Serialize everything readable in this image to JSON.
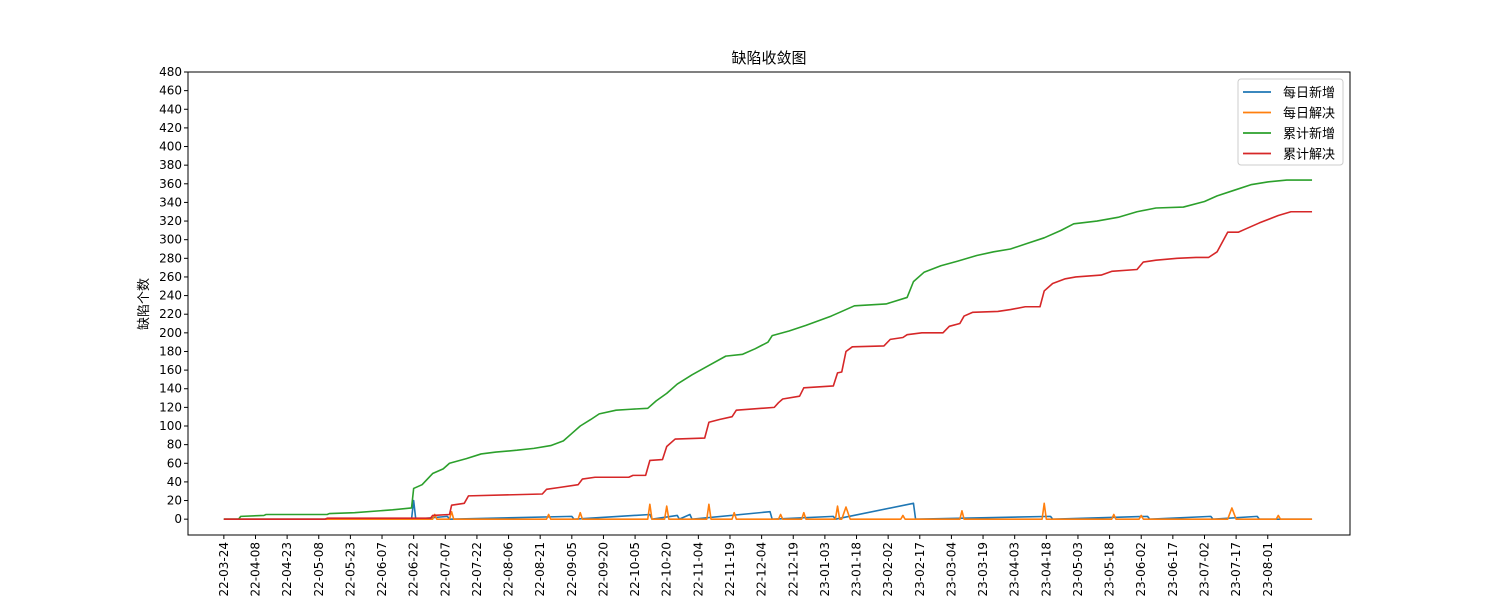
{
  "chart_data": {
    "type": "line",
    "title": "缺陷收敛图",
    "xlabel": "",
    "ylabel": "缺陷个数",
    "ylim": [
      -17,
      480
    ],
    "yticks": [
      0,
      20,
      40,
      60,
      80,
      100,
      120,
      140,
      160,
      180,
      200,
      220,
      240,
      260,
      280,
      300,
      320,
      340,
      360,
      380,
      400,
      420,
      440,
      460,
      480
    ],
    "x_start": "2022-03-24",
    "x_end": "2023-08-22",
    "xlim": [
      "2022-03-07",
      "2023-09-09"
    ],
    "xticks": [
      "22-03-24",
      "22-04-08",
      "22-04-23",
      "22-05-08",
      "22-05-23",
      "22-06-07",
      "22-06-22",
      "22-07-07",
      "22-07-22",
      "22-08-06",
      "22-08-21",
      "22-09-05",
      "22-09-20",
      "22-10-05",
      "22-10-20",
      "22-11-04",
      "22-11-19",
      "22-12-04",
      "22-12-19",
      "23-01-03",
      "23-01-18",
      "23-02-02",
      "23-02-17",
      "23-03-04",
      "23-03-19",
      "23-04-03",
      "23-04-18",
      "23-05-03",
      "23-05-18",
      "23-06-02",
      "23-06-17",
      "23-07-02",
      "23-07-17",
      "23-08-01"
    ],
    "legend_position": "top-right",
    "grid": false,
    "series": [
      {
        "name": "每日新增",
        "color": "#1f77b4",
        "points": [
          [
            "2022-03-24",
            0
          ],
          [
            "2022-06-21",
            0
          ],
          [
            "2022-06-22",
            20
          ],
          [
            "2022-06-23",
            0
          ],
          [
            "2022-07-08",
            3
          ],
          [
            "2022-07-09",
            0
          ],
          [
            "2022-09-05",
            3
          ],
          [
            "2022-09-06",
            0
          ],
          [
            "2022-10-12",
            5
          ],
          [
            "2022-10-13",
            0
          ],
          [
            "2022-10-25",
            4
          ],
          [
            "2022-10-26",
            0
          ],
          [
            "2022-10-31",
            5
          ],
          [
            "2022-11-01",
            0
          ],
          [
            "2022-12-08",
            8
          ],
          [
            "2022-12-09",
            0
          ],
          [
            "2023-01-07",
            3
          ],
          [
            "2023-01-08",
            0
          ],
          [
            "2023-02-14",
            17
          ],
          [
            "2023-02-15",
            0
          ],
          [
            "2023-04-20",
            3
          ],
          [
            "2023-04-21",
            0
          ],
          [
            "2023-06-05",
            3
          ],
          [
            "2023-06-06",
            0
          ],
          [
            "2023-07-05",
            3
          ],
          [
            "2023-07-06",
            0
          ],
          [
            "2023-07-27",
            3
          ],
          [
            "2023-07-28",
            0
          ],
          [
            "2023-08-22",
            0
          ]
        ]
      },
      {
        "name": "每日解决",
        "color": "#ff7f0e",
        "points": [
          [
            "2022-03-24",
            0
          ],
          [
            "2022-07-01",
            0
          ],
          [
            "2022-07-02",
            5
          ],
          [
            "2022-07-03",
            0
          ],
          [
            "2022-07-09",
            0
          ],
          [
            "2022-07-10",
            8
          ],
          [
            "2022-07-11",
            0
          ],
          [
            "2022-08-24",
            0
          ],
          [
            "2022-08-25",
            5
          ],
          [
            "2022-08-26",
            0
          ],
          [
            "2022-09-08",
            0
          ],
          [
            "2022-09-09",
            7
          ],
          [
            "2022-09-10",
            0
          ],
          [
            "2022-10-11",
            0
          ],
          [
            "2022-10-12",
            16
          ],
          [
            "2022-10-13",
            0
          ],
          [
            "2022-10-19",
            0
          ],
          [
            "2022-10-20",
            14
          ],
          [
            "2022-10-21",
            0
          ],
          [
            "2022-11-08",
            0
          ],
          [
            "2022-11-09",
            16
          ],
          [
            "2022-11-10",
            0
          ],
          [
            "2022-11-20",
            0
          ],
          [
            "2022-11-21",
            7
          ],
          [
            "2022-11-22",
            0
          ],
          [
            "2022-12-12",
            0
          ],
          [
            "2022-12-13",
            5
          ],
          [
            "2022-12-14",
            0
          ],
          [
            "2022-12-23",
            0
          ],
          [
            "2022-12-24",
            7
          ],
          [
            "2022-12-25",
            0
          ],
          [
            "2023-01-08",
            0
          ],
          [
            "2023-01-09",
            14
          ],
          [
            "2023-01-10",
            0
          ],
          [
            "2023-01-11",
            0
          ],
          [
            "2023-01-13",
            13
          ],
          [
            "2023-01-15",
            0
          ],
          [
            "2023-02-08",
            0
          ],
          [
            "2023-02-09",
            4
          ],
          [
            "2023-02-10",
            0
          ],
          [
            "2023-03-08",
            0
          ],
          [
            "2023-03-09",
            9
          ],
          [
            "2023-03-10",
            0
          ],
          [
            "2023-04-16",
            0
          ],
          [
            "2023-04-17",
            17
          ],
          [
            "2023-04-18",
            0
          ],
          [
            "2023-05-19",
            0
          ],
          [
            "2023-05-20",
            5
          ],
          [
            "2023-05-21",
            0
          ],
          [
            "2023-06-01",
            0
          ],
          [
            "2023-06-02",
            4
          ],
          [
            "2023-06-03",
            0
          ],
          [
            "2023-07-13",
            0
          ],
          [
            "2023-07-15",
            12
          ],
          [
            "2023-07-17",
            0
          ],
          [
            "2023-08-05",
            0
          ],
          [
            "2023-08-06",
            4
          ],
          [
            "2023-08-07",
            0
          ],
          [
            "2023-08-22",
            0
          ]
        ]
      },
      {
        "name": "累计新增",
        "color": "#2ca02c",
        "points": [
          [
            "2022-03-24",
            0
          ],
          [
            "2022-03-31",
            0
          ],
          [
            "2022-04-01",
            3
          ],
          [
            "2022-04-12",
            4
          ],
          [
            "2022-04-13",
            5
          ],
          [
            "2022-05-12",
            5
          ],
          [
            "2022-05-13",
            6
          ],
          [
            "2022-05-25",
            7
          ],
          [
            "2022-06-12",
            10
          ],
          [
            "2022-06-21",
            12
          ],
          [
            "2022-06-22",
            33
          ],
          [
            "2022-06-26",
            37
          ],
          [
            "2022-07-01",
            49
          ],
          [
            "2022-07-06",
            54
          ],
          [
            "2022-07-09",
            60
          ],
          [
            "2022-07-17",
            65
          ],
          [
            "2022-07-24",
            70
          ],
          [
            "2022-07-31",
            72
          ],
          [
            "2022-08-10",
            74
          ],
          [
            "2022-08-18",
            76
          ],
          [
            "2022-08-26",
            79
          ],
          [
            "2022-09-01",
            84
          ],
          [
            "2022-09-05",
            92
          ],
          [
            "2022-09-09",
            100
          ],
          [
            "2022-09-14",
            107
          ],
          [
            "2022-09-18",
            113
          ],
          [
            "2022-09-26",
            117
          ],
          [
            "2022-10-03",
            118
          ],
          [
            "2022-10-11",
            119
          ],
          [
            "2022-10-15",
            127
          ],
          [
            "2022-10-20",
            135
          ],
          [
            "2022-10-25",
            145
          ],
          [
            "2022-11-01",
            155
          ],
          [
            "2022-11-09",
            165
          ],
          [
            "2022-11-17",
            175
          ],
          [
            "2022-11-25",
            177
          ],
          [
            "2022-12-01",
            183
          ],
          [
            "2022-12-07",
            190
          ],
          [
            "2022-12-09",
            197
          ],
          [
            "2022-12-17",
            202
          ],
          [
            "2022-12-25",
            208
          ],
          [
            "2022-12-31",
            213
          ],
          [
            "2023-01-06",
            218
          ],
          [
            "2023-01-11",
            223
          ],
          [
            "2023-01-17",
            229
          ],
          [
            "2023-02-01",
            231
          ],
          [
            "2023-02-11",
            238
          ],
          [
            "2023-02-14",
            255
          ],
          [
            "2023-02-19",
            265
          ],
          [
            "2023-02-27",
            272
          ],
          [
            "2023-03-07",
            277
          ],
          [
            "2023-03-16",
            283
          ],
          [
            "2023-03-24",
            287
          ],
          [
            "2023-04-01",
            290
          ],
          [
            "2023-04-09",
            296
          ],
          [
            "2023-04-17",
            302
          ],
          [
            "2023-04-25",
            310
          ],
          [
            "2023-05-01",
            317
          ],
          [
            "2023-05-12",
            320
          ],
          [
            "2023-05-22",
            324
          ],
          [
            "2023-05-31",
            330
          ],
          [
            "2023-06-09",
            334
          ],
          [
            "2023-06-22",
            335
          ],
          [
            "2023-07-02",
            341
          ],
          [
            "2023-07-08",
            347
          ],
          [
            "2023-07-16",
            353
          ],
          [
            "2023-07-24",
            359
          ],
          [
            "2023-08-01",
            362
          ],
          [
            "2023-08-10",
            364
          ],
          [
            "2023-08-22",
            364
          ]
        ]
      },
      {
        "name": "累计解决",
        "color": "#d62728",
        "points": [
          [
            "2022-03-24",
            0
          ],
          [
            "2022-05-11",
            0
          ],
          [
            "2022-05-12",
            1
          ],
          [
            "2022-06-30",
            1
          ],
          [
            "2022-07-01",
            4
          ],
          [
            "2022-07-09",
            5
          ],
          [
            "2022-07-10",
            15
          ],
          [
            "2022-07-16",
            17
          ],
          [
            "2022-07-18",
            25
          ],
          [
            "2022-08-22",
            27
          ],
          [
            "2022-08-24",
            32
          ],
          [
            "2022-08-30",
            34
          ],
          [
            "2022-09-08",
            37
          ],
          [
            "2022-09-10",
            43
          ],
          [
            "2022-09-16",
            45
          ],
          [
            "2022-10-02",
            45
          ],
          [
            "2022-10-04",
            47
          ],
          [
            "2022-10-10",
            47
          ],
          [
            "2022-10-12",
            63
          ],
          [
            "2022-10-18",
            64
          ],
          [
            "2022-10-20",
            78
          ],
          [
            "2022-10-24",
            86
          ],
          [
            "2022-11-07",
            87
          ],
          [
            "2022-11-09",
            104
          ],
          [
            "2022-11-14",
            107
          ],
          [
            "2022-11-20",
            110
          ],
          [
            "2022-11-22",
            117
          ],
          [
            "2022-12-10",
            120
          ],
          [
            "2022-12-12",
            125
          ],
          [
            "2022-12-14",
            129
          ],
          [
            "2022-12-22",
            132
          ],
          [
            "2022-12-24",
            141
          ],
          [
            "2023-01-07",
            143
          ],
          [
            "2023-01-09",
            157
          ],
          [
            "2023-01-11",
            158
          ],
          [
            "2023-01-13",
            180
          ],
          [
            "2023-01-16",
            185
          ],
          [
            "2023-01-31",
            186
          ],
          [
            "2023-02-03",
            193
          ],
          [
            "2023-02-09",
            195
          ],
          [
            "2023-02-11",
            198
          ],
          [
            "2023-02-18",
            200
          ],
          [
            "2023-02-28",
            200
          ],
          [
            "2023-03-03",
            207
          ],
          [
            "2023-03-08",
            210
          ],
          [
            "2023-03-10",
            218
          ],
          [
            "2023-03-14",
            222
          ],
          [
            "2023-03-26",
            223
          ],
          [
            "2023-04-01",
            225
          ],
          [
            "2023-04-08",
            228
          ],
          [
            "2023-04-15",
            228
          ],
          [
            "2023-04-17",
            245
          ],
          [
            "2023-04-21",
            253
          ],
          [
            "2023-04-27",
            258
          ],
          [
            "2023-05-02",
            260
          ],
          [
            "2023-05-14",
            262
          ],
          [
            "2023-05-19",
            266
          ],
          [
            "2023-05-31",
            268
          ],
          [
            "2023-06-03",
            276
          ],
          [
            "2023-06-09",
            278
          ],
          [
            "2023-06-19",
            280
          ],
          [
            "2023-06-28",
            281
          ],
          [
            "2023-07-04",
            281
          ],
          [
            "2023-07-08",
            287
          ],
          [
            "2023-07-13",
            308
          ],
          [
            "2023-07-18",
            308
          ],
          [
            "2023-07-21",
            311
          ],
          [
            "2023-07-28",
            318
          ],
          [
            "2023-08-06",
            326
          ],
          [
            "2023-08-12",
            330
          ],
          [
            "2023-08-22",
            330
          ]
        ]
      }
    ]
  }
}
